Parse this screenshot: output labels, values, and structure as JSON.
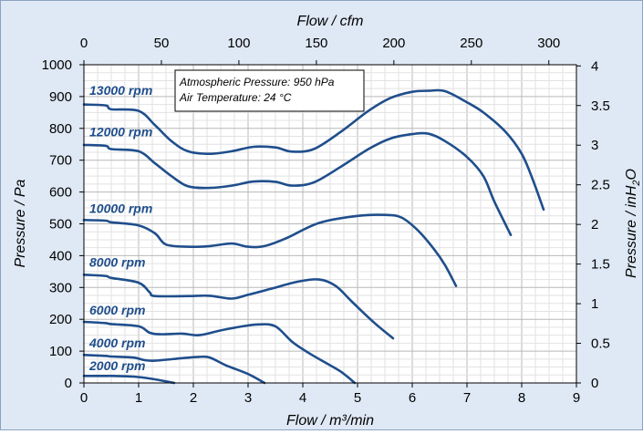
{
  "chart_data": {
    "type": "line",
    "title": "",
    "xlabel": "Flow / m³/min",
    "ylabel": "Pressure / Pa",
    "x2label": "Flow / cfm",
    "y2label_prefix": "Pressure / inH",
    "y2label_sub": "2",
    "y2label_suffix": "O",
    "xlim": [
      0,
      9
    ],
    "ylim": [
      0,
      1000
    ],
    "x2lim": [
      0,
      317.8
    ],
    "y2lim": [
      0,
      4.015
    ],
    "xticks": [
      "0",
      "1",
      "2",
      "3",
      "4",
      "5",
      "6",
      "7",
      "8",
      "9"
    ],
    "yticks": [
      "0",
      "100",
      "200",
      "300",
      "400",
      "500",
      "600",
      "700",
      "800",
      "900",
      "1000"
    ],
    "x2ticks": [
      "0",
      "50",
      "100",
      "150",
      "200",
      "250",
      "300"
    ],
    "y2ticks": [
      "0",
      "0.5",
      "1",
      "1.5",
      "2",
      "2.5",
      "3",
      "3.5",
      "4"
    ],
    "grid": true,
    "annotation_lines": [
      "Atmospheric Pressure: 950 hPa",
      "Air Temperature: 24 °C"
    ],
    "line_color": "#1f4e8c",
    "series": [
      {
        "name": "13000 rpm",
        "label_at": [
          0.1,
          905
        ],
        "points": [
          [
            0,
            875
          ],
          [
            0.4,
            872
          ],
          [
            0.5,
            860
          ],
          [
            1.0,
            855
          ],
          [
            1.3,
            810
          ],
          [
            1.6,
            760
          ],
          [
            1.9,
            728
          ],
          [
            2.3,
            720
          ],
          [
            2.7,
            728
          ],
          [
            3.1,
            742
          ],
          [
            3.5,
            740
          ],
          [
            3.8,
            727
          ],
          [
            4.2,
            735
          ],
          [
            4.7,
            790
          ],
          [
            5.2,
            855
          ],
          [
            5.6,
            895
          ],
          [
            6.0,
            915
          ],
          [
            6.3,
            918
          ],
          [
            6.6,
            917
          ],
          [
            7.0,
            882
          ],
          [
            7.3,
            850
          ],
          [
            7.7,
            790
          ],
          [
            8.0,
            720
          ],
          [
            8.2,
            640
          ],
          [
            8.4,
            545
          ]
        ]
      },
      {
        "name": "12000 rpm",
        "label_at": [
          0.1,
          775
        ],
        "points": [
          [
            0,
            748
          ],
          [
            0.4,
            745
          ],
          [
            0.5,
            735
          ],
          [
            1.0,
            728
          ],
          [
            1.3,
            690
          ],
          [
            1.6,
            650
          ],
          [
            1.9,
            618
          ],
          [
            2.3,
            613
          ],
          [
            2.7,
            620
          ],
          [
            3.1,
            633
          ],
          [
            3.5,
            632
          ],
          [
            3.8,
            620
          ],
          [
            4.2,
            630
          ],
          [
            4.7,
            680
          ],
          [
            5.2,
            735
          ],
          [
            5.6,
            768
          ],
          [
            6.0,
            782
          ],
          [
            6.3,
            783
          ],
          [
            6.6,
            760
          ],
          [
            7.0,
            710
          ],
          [
            7.3,
            650
          ],
          [
            7.5,
            570
          ],
          [
            7.8,
            465
          ]
        ]
      },
      {
        "name": "10000 rpm",
        "label_at": [
          0.1,
          535
        ],
        "points": [
          [
            0,
            512
          ],
          [
            0.4,
            510
          ],
          [
            0.5,
            505
          ],
          [
            1.0,
            495
          ],
          [
            1.3,
            470
          ],
          [
            1.5,
            435
          ],
          [
            1.9,
            428
          ],
          [
            2.3,
            430
          ],
          [
            2.7,
            438
          ],
          [
            3.0,
            428
          ],
          [
            3.3,
            430
          ],
          [
            3.7,
            455
          ],
          [
            4.3,
            503
          ],
          [
            5.0,
            525
          ],
          [
            5.5,
            528
          ],
          [
            5.8,
            520
          ],
          [
            6.1,
            480
          ],
          [
            6.4,
            420
          ],
          [
            6.6,
            370
          ],
          [
            6.8,
            305
          ]
        ]
      },
      {
        "name": "8000 rpm",
        "label_at": [
          0.1,
          365
        ],
        "points": [
          [
            0,
            340
          ],
          [
            0.4,
            336
          ],
          [
            0.5,
            330
          ],
          [
            1.0,
            315
          ],
          [
            1.2,
            285
          ],
          [
            1.3,
            273
          ],
          [
            1.9,
            273
          ],
          [
            2.3,
            274
          ],
          [
            2.7,
            265
          ],
          [
            3.0,
            277
          ],
          [
            3.4,
            295
          ],
          [
            3.9,
            318
          ],
          [
            4.3,
            325
          ],
          [
            4.6,
            305
          ],
          [
            4.9,
            255
          ],
          [
            5.3,
            190
          ],
          [
            5.65,
            140
          ]
        ]
      },
      {
        "name": "6000 rpm",
        "label_at": [
          0.1,
          215
        ],
        "points": [
          [
            0,
            192
          ],
          [
            0.4,
            188
          ],
          [
            0.5,
            185
          ],
          [
            1.0,
            178
          ],
          [
            1.2,
            158
          ],
          [
            1.4,
            153
          ],
          [
            1.8,
            155
          ],
          [
            2.1,
            150
          ],
          [
            2.5,
            165
          ],
          [
            2.9,
            178
          ],
          [
            3.2,
            184
          ],
          [
            3.5,
            178
          ],
          [
            3.8,
            130
          ],
          [
            4.1,
            95
          ],
          [
            4.4,
            65
          ],
          [
            4.7,
            35
          ],
          [
            4.95,
            0
          ]
        ]
      },
      {
        "name": "4000 rpm",
        "label_at": [
          0.1,
          112
        ],
        "points": [
          [
            0,
            88
          ],
          [
            0.4,
            85
          ],
          [
            0.5,
            83
          ],
          [
            0.9,
            80
          ],
          [
            1.1,
            72
          ],
          [
            1.3,
            70
          ],
          [
            1.8,
            78
          ],
          [
            2.1,
            82
          ],
          [
            2.3,
            80
          ],
          [
            2.6,
            55
          ],
          [
            3.0,
            28
          ],
          [
            3.3,
            0
          ]
        ]
      },
      {
        "name": "2000 rpm",
        "label_at": [
          0.1,
          40
        ],
        "points": [
          [
            0,
            22
          ],
          [
            0.4,
            22
          ],
          [
            0.5,
            22
          ],
          [
            0.9,
            20
          ],
          [
            1.2,
            14
          ],
          [
            1.5,
            5
          ],
          [
            1.65,
            0
          ]
        ]
      }
    ]
  }
}
